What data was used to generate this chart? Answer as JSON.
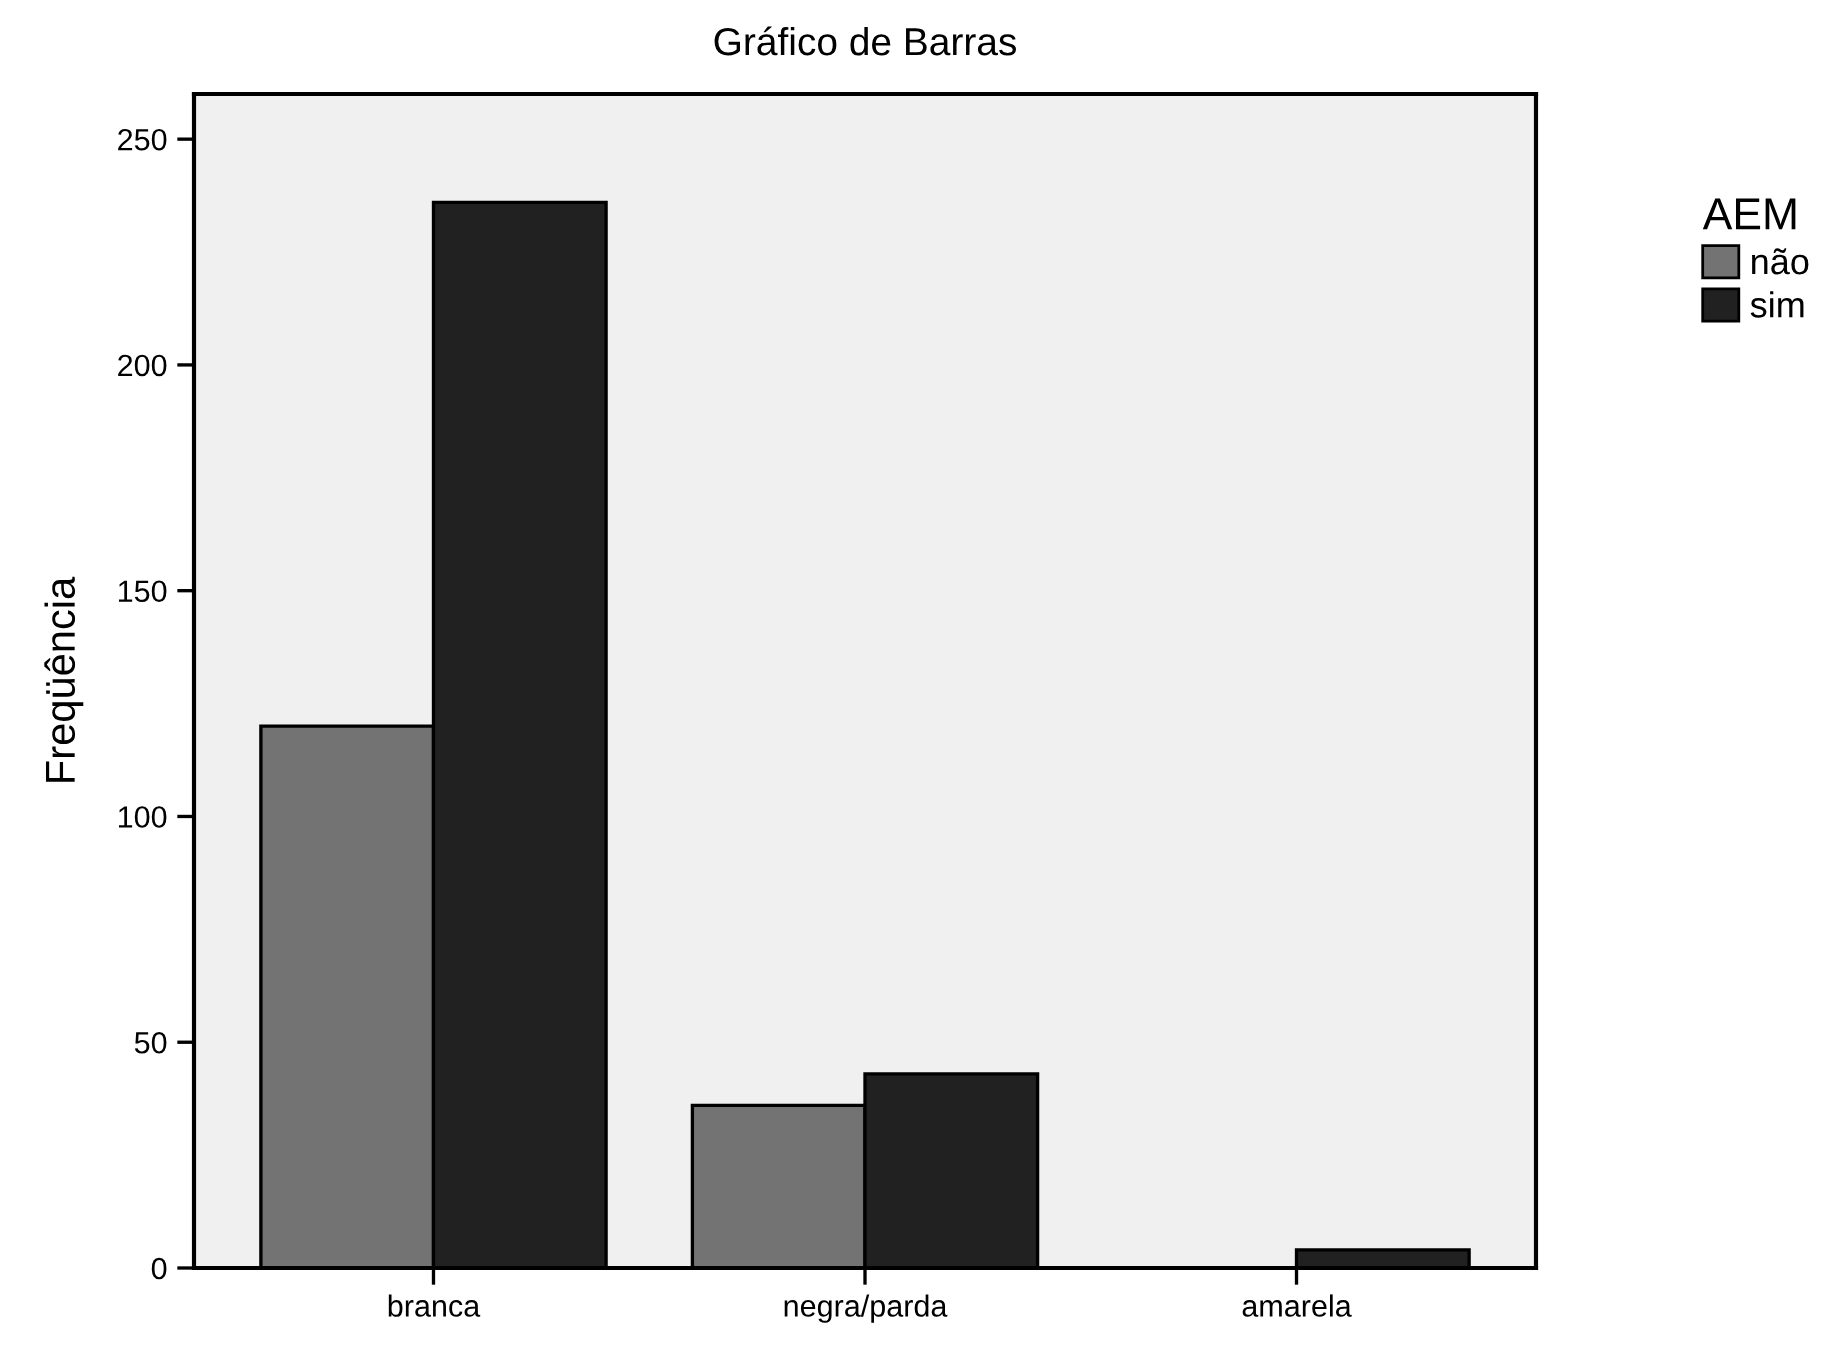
{
  "chart_data": {
    "type": "bar",
    "title": "Gráfico de Barras",
    "ylabel": "Freqüência",
    "legend_title": "AEM",
    "categories": [
      "branca",
      "negra/parda",
      "amarela"
    ],
    "series": [
      {
        "name": "não",
        "color": "#737373",
        "values": [
          120,
          36,
          0
        ]
      },
      {
        "name": "sim",
        "color": "#212121",
        "values": [
          236,
          43,
          4
        ]
      }
    ],
    "ylim": [
      0,
      260
    ],
    "yticks": [
      0,
      50,
      100,
      150,
      200,
      250
    ],
    "grid": false,
    "legend": "top right"
  }
}
